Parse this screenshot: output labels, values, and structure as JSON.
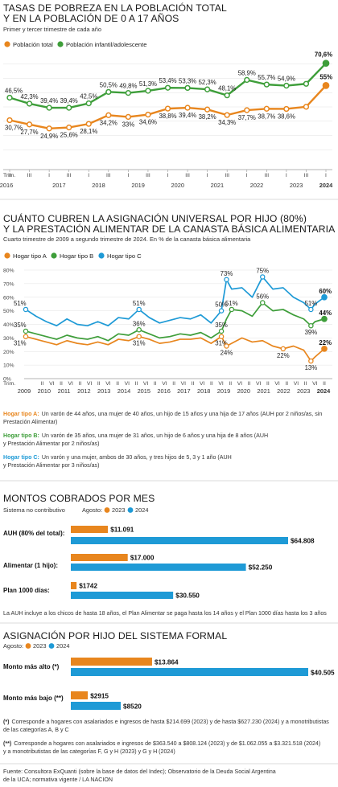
{
  "colors": {
    "orange": "#E8861E",
    "green": "#3E9E3A",
    "blue": "#1E9AD6",
    "grid": "#d9d9d9",
    "text": "#222222"
  },
  "section1": {
    "title_line1": "TASAS DE POBREZA EN LA POBLACIÓN TOTAL",
    "title_line2": "Y EN LA POBLACIÓN DE 0 A 17 AÑOS",
    "subtitle": "Primer y tercer trimestre de cada año"
  },
  "section2": {
    "title_line1": "CUÁNTO CUBREN LA ASIGNACIÓN UNIVERSAL POR HIJO (80%)",
    "title_line2": "Y LA PRESTACIÓN ALIMENTAR DE LA CANASTA BÁSICA ALIMENTARIA",
    "subtitle": "Cuarto trimestre de 2009 a segundo trimestre de 2024. En % de la canasta básica alimentaria",
    "household_notes": [
      {
        "name": "Hogar tipo A:",
        "text": [
          "Un varón de 44 años, una mujer de 40 años, un hijo de 15 años y una hija de 17 años (AUH por 2 niños/as, sin",
          "Prestación Alimentar)"
        ]
      },
      {
        "name": "Hogar tipo B:",
        "text": [
          "Un varón de 35 años, una mujer de 31 años, un hijo de 6 años y una hija de 8 años (AUH",
          "y Prestación Alimentar por 2 niños/as)"
        ]
      },
      {
        "name": "Hogar tipo C:",
        "text": [
          "Un varón y una mujer, ambos de 30 años, y tres hijos de 5, 3 y 1 año (AUH",
          "y Prestación Alimentar por 3 niños/as)"
        ]
      }
    ]
  },
  "section3": {
    "title": "MONTOS COBRADOS POR MES",
    "subtitle": "Sistema no contributivo",
    "legend_prefix": "Agosto:",
    "footnote": "La AUH incluye a los chicos de hasta 18 años, el Plan Alimentar se paga hasta los 14 años y el Plan 1000 días hasta los 3 años"
  },
  "section4": {
    "title": "ASIGNACIÓN POR HIJO DEL SISTEMA FORMAL",
    "legend_prefix": "Agosto:",
    "notes": [
      {
        "mark": "(*)",
        "text": [
          "Corresponde a hogares con asalariados e ingresos de hasta $214.699 (2023) y de hasta $627.230 (2024) y a monotributistas",
          "de las categorías A, B y C"
        ]
      },
      {
        "mark": "(**)",
        "text": [
          "Corresponde a hogares con asalariados e ingresos de $363.540 a $808.124 (2023) y de $1.062.055 a $3.321.518 (2024)",
          "y a monotributistas de las categorías F, G y H (2023) y G y H (2024)"
        ]
      }
    ]
  },
  "source": [
    "Fuente: Consultora ExQuanti (sobre la base de datos del Indec); Observatorio de la Deuda Social Argentina",
    "de la UCA; normativa vigente / LA NACION"
  ],
  "chart_data": [
    {
      "id": "pobreza",
      "type": "line",
      "title": "TASAS DE POBREZA EN LA POBLACIÓN TOTAL Y EN LA POBLACIÓN DE 0 A 17 AÑOS",
      "subtitle": "Primer y tercer trimestre de cada año",
      "x": [
        "2016-II",
        "2016-III",
        "2017-I",
        "2017-III",
        "2018-I",
        "2018-III",
        "2019-I",
        "2019-III",
        "2020-I",
        "2020-III",
        "2021-I",
        "2021-III",
        "2022-I",
        "2022-III",
        "2023-I",
        "2023-III",
        "2024-I"
      ],
      "tick_first_label": "Trim.",
      "tick_labels": [
        "II",
        "III",
        "I",
        "III",
        "I",
        "III",
        "I",
        "III",
        "I",
        "III",
        "I",
        "III",
        "I",
        "III",
        "I",
        "III",
        "I"
      ],
      "years": [
        "2016",
        "2017",
        "2018",
        "2019",
        "2020",
        "2021",
        "2022",
        "2023",
        "2024"
      ],
      "ylim": [
        0,
        80
      ],
      "grid": "horizontal",
      "legend": "top-left",
      "series": [
        {
          "name": "Población total",
          "color": "#E8861E",
          "values": [
            30.7,
            27.7,
            24.9,
            25.6,
            28.1,
            34.2,
            33.0,
            34.6,
            38.8,
            39.4,
            38.2,
            34.3,
            37.7,
            38.7,
            38.6,
            40.1,
            55.0
          ],
          "labels": [
            "30,7%",
            "27,7%",
            "24,9%",
            "25,6%",
            "28,1%",
            "34,2%",
            "33%",
            "34,6%",
            "38,8%",
            "39,4%",
            "38,2%",
            "34,3%",
            "37,7%",
            "38,7%",
            "38,6%",
            "",
            "55%"
          ]
        },
        {
          "name": "Población infantil/adolescente",
          "color": "#3E9E3A",
          "values": [
            46.5,
            42.3,
            39.4,
            39.4,
            42.5,
            50.5,
            49.8,
            51.3,
            53.4,
            53.3,
            52.3,
            48.1,
            58.9,
            55.7,
            54.9,
            56.2,
            70.6
          ],
          "labels": [
            "46,5%",
            "42,3%",
            "39,4%",
            "39,4%",
            "42,5%",
            "50,5%",
            "49,8%",
            "51,3%",
            "53,4%",
            "53,3%",
            "52,3%",
            "48,1%",
            "58,9%",
            "55,7%",
            "54,9%",
            "",
            "70,6%"
          ]
        }
      ]
    },
    {
      "id": "cobertura",
      "type": "line",
      "title": "CUÁNTO CUBREN LA ASIGNACIÓN UNIVERSAL POR HIJO (80%) Y LA PRESTACIÓN ALIMENTAR DE LA CANASTA BÁSICA ALIMENTARIA",
      "x_start": 2009.75,
      "x_end": 2024.25,
      "years": [
        "2009",
        "2010",
        "2011",
        "2012",
        "2013",
        "2014",
        "2015",
        "2016",
        "2017",
        "2018",
        "2019",
        "2020",
        "2021",
        "2022",
        "2023",
        "2024"
      ],
      "tick_first_label": "Trim.",
      "tick_labels": [
        "VI",
        "II",
        "VI",
        "II",
        "VI",
        "II",
        "VI",
        "II",
        "VI",
        "II",
        "VI",
        "II",
        "VI",
        "II",
        "VI",
        "II",
        "VI",
        "II",
        "VI",
        "II",
        "VI",
        "II",
        "VI",
        "II",
        "VI",
        "II",
        "VI",
        "II",
        "VI",
        "II",
        "VI",
        "II"
      ],
      "ylim": [
        0,
        80
      ],
      "y_ticks": [
        0,
        10,
        20,
        30,
        40,
        50,
        60,
        70,
        80
      ],
      "y_tick_labels": [
        "0%",
        "10%",
        "20%",
        "30%",
        "40%",
        "50%",
        "60%",
        "70%",
        "80%"
      ],
      "grid": "horizontal",
      "legend": "top-left",
      "series": [
        {
          "name": "Hogar tipo A",
          "color": "#E8861E",
          "points": [
            [
              2009.75,
              31
            ],
            [
              2010.25,
              29
            ],
            [
              2010.75,
              27
            ],
            [
              2011.25,
              25
            ],
            [
              2011.75,
              28
            ],
            [
              2012.25,
              26
            ],
            [
              2012.75,
              25
            ],
            [
              2013.25,
              27
            ],
            [
              2013.75,
              25
            ],
            [
              2014.25,
              29
            ],
            [
              2014.75,
              28
            ],
            [
              2015.25,
              31
            ],
            [
              2015.75,
              29
            ],
            [
              2016.25,
              26
            ],
            [
              2016.75,
              27
            ],
            [
              2017.25,
              29
            ],
            [
              2017.75,
              29
            ],
            [
              2018.25,
              30
            ],
            [
              2018.75,
              26
            ],
            [
              2019.25,
              31
            ],
            [
              2019.5,
              24
            ],
            [
              2019.75,
              26
            ],
            [
              2020.25,
              30
            ],
            [
              2020.75,
              27
            ],
            [
              2021.25,
              28
            ],
            [
              2021.75,
              24
            ],
            [
              2022.25,
              22
            ],
            [
              2022.75,
              24
            ],
            [
              2023.25,
              21
            ],
            [
              2023.6,
              13
            ],
            [
              2023.8,
              16
            ],
            [
              2024.25,
              22
            ]
          ],
          "labels": [
            [
              2009.75,
              31,
              "31%"
            ],
            [
              2015.25,
              31,
              "31%"
            ],
            [
              2019.25,
              31,
              "31%"
            ],
            [
              2019.5,
              24,
              "24%"
            ],
            [
              2022.25,
              22,
              "22%"
            ],
            [
              2023.6,
              13,
              "13%"
            ],
            [
              2024.25,
              22,
              "22%"
            ]
          ]
        },
        {
          "name": "Hogar tipo B",
          "color": "#3E9E3A",
          "points": [
            [
              2009.75,
              35
            ],
            [
              2010.25,
              33
            ],
            [
              2010.75,
              31
            ],
            [
              2011.25,
              29
            ],
            [
              2011.75,
              32
            ],
            [
              2012.25,
              30
            ],
            [
              2012.75,
              29
            ],
            [
              2013.25,
              31
            ],
            [
              2013.75,
              28
            ],
            [
              2014.25,
              33
            ],
            [
              2014.75,
              32
            ],
            [
              2015.25,
              36
            ],
            [
              2015.75,
              33
            ],
            [
              2016.25,
              30
            ],
            [
              2016.75,
              31
            ],
            [
              2017.25,
              33
            ],
            [
              2017.75,
              32
            ],
            [
              2018.25,
              34
            ],
            [
              2018.75,
              30
            ],
            [
              2019.25,
              35
            ],
            [
              2019.5,
              44
            ],
            [
              2019.75,
              51
            ],
            [
              2020.25,
              50
            ],
            [
              2020.75,
              46
            ],
            [
              2021.25,
              56
            ],
            [
              2021.75,
              50
            ],
            [
              2022.25,
              51
            ],
            [
              2022.75,
              47
            ],
            [
              2023.25,
              44
            ],
            [
              2023.6,
              39
            ],
            [
              2023.8,
              42
            ],
            [
              2024.25,
              44
            ]
          ],
          "labels": [
            [
              2009.75,
              35,
              "35%"
            ],
            [
              2015.25,
              36,
              "36%"
            ],
            [
              2019.25,
              35,
              "35%"
            ],
            [
              2019.75,
              51,
              "51%"
            ],
            [
              2021.25,
              56,
              "56%"
            ],
            [
              2023.6,
              39,
              "39%"
            ],
            [
              2024.25,
              44,
              "44%"
            ]
          ]
        },
        {
          "name": "Hogar tipo C",
          "color": "#1E9AD6",
          "points": [
            [
              2009.75,
              51
            ],
            [
              2010.25,
              46
            ],
            [
              2010.75,
              42
            ],
            [
              2011.25,
              39
            ],
            [
              2011.75,
              44
            ],
            [
              2012.25,
              40
            ],
            [
              2012.75,
              39
            ],
            [
              2013.25,
              42
            ],
            [
              2013.75,
              39
            ],
            [
              2014.25,
              45
            ],
            [
              2014.75,
              44
            ],
            [
              2015.25,
              51
            ],
            [
              2015.75,
              45
            ],
            [
              2016.25,
              41
            ],
            [
              2016.75,
              43
            ],
            [
              2017.25,
              45
            ],
            [
              2017.75,
              44
            ],
            [
              2018.25,
              47
            ],
            [
              2018.75,
              41
            ],
            [
              2019.25,
              50
            ],
            [
              2019.5,
              73
            ],
            [
              2019.75,
              66
            ],
            [
              2020.25,
              67
            ],
            [
              2020.75,
              60
            ],
            [
              2021.25,
              75
            ],
            [
              2021.75,
              66
            ],
            [
              2022.25,
              67
            ],
            [
              2022.75,
              60
            ],
            [
              2023.25,
              56
            ],
            [
              2023.6,
              51
            ],
            [
              2023.8,
              55
            ],
            [
              2024.25,
              60
            ]
          ],
          "labels": [
            [
              2009.75,
              51,
              "51%"
            ],
            [
              2015.25,
              51,
              "51%"
            ],
            [
              2019.25,
              50,
              "50%"
            ],
            [
              2019.5,
              73,
              "73%"
            ],
            [
              2021.25,
              75,
              "75%"
            ],
            [
              2023.6,
              51,
              "51%"
            ],
            [
              2024.25,
              60,
              "60%"
            ]
          ]
        }
      ]
    },
    {
      "id": "montos_no_contributivo",
      "type": "bar",
      "orientation": "horizontal",
      "title": "MONTOS COBRADOS POR MES",
      "subtitle": "Sistema no contributivo",
      "categories": [
        "AUH (80% del total):",
        "Alimentar (1 hijo):",
        "Plan 1000 días:"
      ],
      "xlim": [
        0,
        64808
      ],
      "series": [
        {
          "name": "2023",
          "color": "#E8861E",
          "values": [
            11091,
            17000,
            1742
          ],
          "labels": [
            "$11.091",
            "$17.000",
            "$1742"
          ]
        },
        {
          "name": "2024",
          "color": "#1E9AD6",
          "values": [
            64808,
            52250,
            30550
          ],
          "labels": [
            "$64.808",
            "$52.250",
            "$30.550"
          ]
        }
      ],
      "legend": "top"
    },
    {
      "id": "sistema_formal",
      "type": "bar",
      "orientation": "horizontal",
      "title": "ASIGNACIÓN POR HIJO DEL SISTEMA FORMAL",
      "categories": [
        "Monto más alto (*)",
        "Monto más bajo (**)"
      ],
      "xlim": [
        0,
        40505
      ],
      "series": [
        {
          "name": "2023",
          "color": "#E8861E",
          "values": [
            13864,
            2915
          ],
          "labels": [
            "$13.864",
            "$2915"
          ]
        },
        {
          "name": "2024",
          "color": "#1E9AD6",
          "values": [
            40505,
            8520
          ],
          "labels": [
            "$40.505",
            "$8520"
          ]
        }
      ],
      "legend": "top"
    }
  ]
}
